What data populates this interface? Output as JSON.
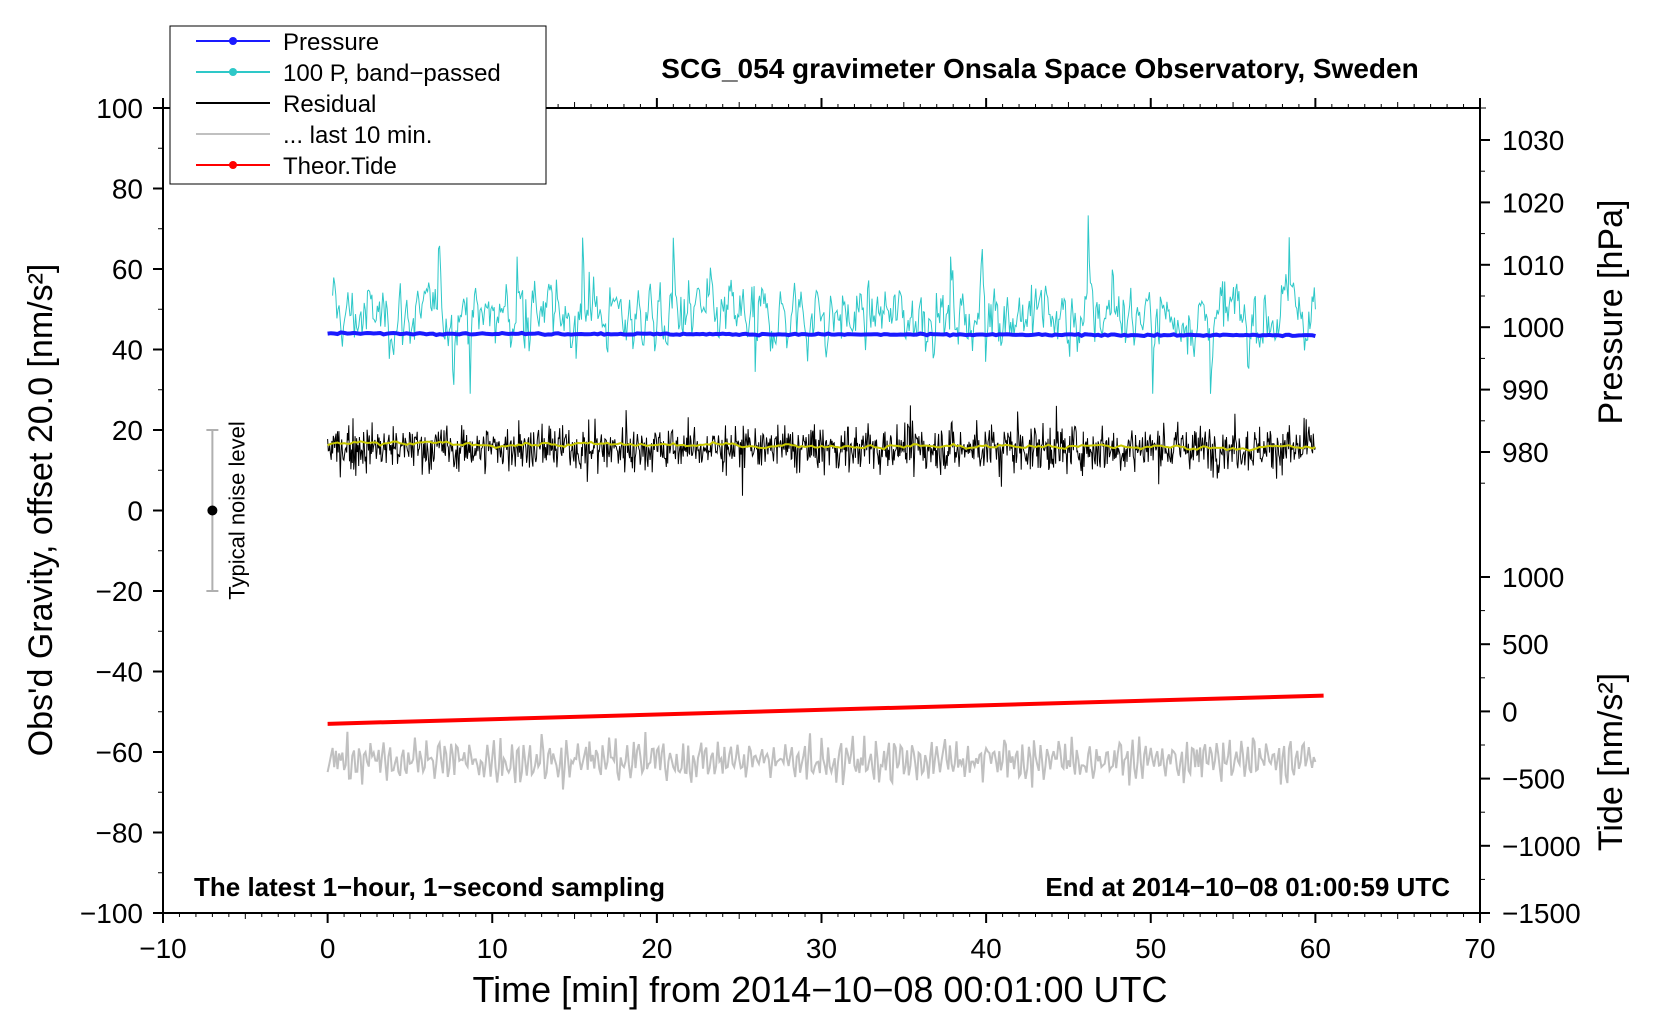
{
  "chart_data": {
    "type": "line",
    "title": "SCG_054 gravimeter Onsala Space Observatory, Sweden",
    "xlabel": "Time [min] from 2014−10−08 00:01:00 UTC",
    "ylabel_left": "Obs'd Gravity, offset 20.0 [nm/s²]",
    "ylabel_right_pressure": "Pressure [hPa]",
    "ylabel_right_tide": "Tide [nm/s²]",
    "xlim": [
      -10,
      70
    ],
    "ylim": [
      -100,
      100
    ],
    "pressure_axis_range": [
      970,
      1033
    ],
    "tide_axis_range": [
      -1500,
      1500
    ],
    "x_ticks": [
      -10,
      0,
      10,
      20,
      30,
      40,
      50,
      60,
      70
    ],
    "x_tick_labels": [
      "−10",
      "0",
      "10",
      "20",
      "30",
      "40",
      "50",
      "60",
      "70"
    ],
    "y_ticks": [
      -100,
      -80,
      -60,
      -40,
      -20,
      0,
      20,
      40,
      60,
      80,
      100
    ],
    "y_tick_labels": [
      "−100",
      "−80",
      "−60",
      "−40",
      "−20",
      "0",
      "20",
      "40",
      "60",
      "80",
      "100"
    ],
    "pressure_ticks": [
      980,
      990,
      1000,
      1010,
      1020,
      1030
    ],
    "pressure_tick_labels": [
      "980",
      "990",
      "1000",
      "1010",
      "1020",
      "1030"
    ],
    "tide_ticks": [
      -1500,
      -1000,
      -500,
      0,
      500,
      1000
    ],
    "tide_tick_labels": [
      "−1500",
      "−1000",
      "−500",
      "0",
      "500",
      "1000"
    ],
    "legend": [
      {
        "name": "Pressure",
        "color": "#1a1aff",
        "style": "line-dot"
      },
      {
        "name": "100 P, band−passed",
        "color": "#2ec8c8",
        "style": "line-dot"
      },
      {
        "name": "Residual",
        "color": "#000000",
        "style": "line"
      },
      {
        "name": "... last 10 min.",
        "color": "#c0c0c0",
        "style": "line"
      },
      {
        "name": "Theor.Tide",
        "color": "#ff0000",
        "style": "line-dot"
      }
    ],
    "series": [
      {
        "name": "Pressure",
        "axis": "gravity",
        "x": [
          0,
          60
        ],
        "values": [
          44.0,
          43.5
        ],
        "color": "#1a1aff"
      },
      {
        "name": "100 P, band−passed",
        "axis": "gravity",
        "x_range": [
          0.3,
          60
        ],
        "mean": 48.5,
        "amplitude_range": [
          29,
          75
        ],
        "color": "#2ec8c8"
      },
      {
        "name": "Residual",
        "axis": "gravity",
        "x_range": [
          0,
          60
        ],
        "mean": 15.5,
        "amplitude_range": [
          1,
          31
        ],
        "color": "#000000"
      },
      {
        "name": "Residual (smoothed)",
        "axis": "gravity",
        "x_range": [
          0,
          60
        ],
        "mean": 16,
        "color": "#c8c800"
      },
      {
        "name": "... last 10 min.",
        "axis": "gravity",
        "x_range": [
          0,
          60
        ],
        "mean": -62,
        "amplitude_range": [
          -73,
          -47
        ],
        "color": "#c0c0c0"
      },
      {
        "name": "Theor.Tide",
        "axis": "gravity",
        "x": [
          0,
          60.5
        ],
        "values": [
          -53,
          -46
        ],
        "color": "#ff0000"
      }
    ],
    "annotations": {
      "left_note": "The latest 1−hour, 1−second sampling",
      "right_note": "End at 2014−10−08 01:00:59 UTC",
      "noise_label": "Typical noise level",
      "noise_center": 0,
      "noise_range": [
        -20,
        20
      ],
      "noise_x": -7
    },
    "colors": {
      "smoothed": "#c8c800",
      "noise_bar": "#b0b0b0"
    }
  }
}
